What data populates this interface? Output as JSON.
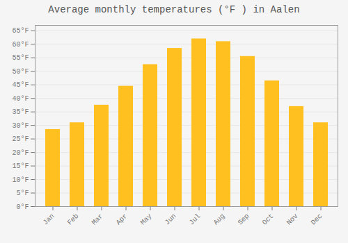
{
  "chart_data": {
    "type": "bar",
    "title": "Average monthly temperatures (°F ) in Aalen",
    "categories": [
      "Jan",
      "Feb",
      "Mar",
      "Apr",
      "May",
      "Jun",
      "Jul",
      "Aug",
      "Sep",
      "Oct",
      "Nov",
      "Dec"
    ],
    "values": [
      28.5,
      31.0,
      37.5,
      44.5,
      52.5,
      58.5,
      62.0,
      61.0,
      55.5,
      46.5,
      37.0,
      31.0
    ],
    "color": "#FFC020",
    "ylim": [
      0,
      67
    ],
    "yticks": [
      {
        "value": 0,
        "label": "0°F"
      },
      {
        "value": 5,
        "label": "5°F"
      },
      {
        "value": 10,
        "label": "10°F"
      },
      {
        "value": 15,
        "label": "15°F"
      },
      {
        "value": 20,
        "label": "20°F"
      },
      {
        "value": 25,
        "label": "25°F"
      },
      {
        "value": 30,
        "label": "30°F"
      },
      {
        "value": 35,
        "label": "35°F"
      },
      {
        "value": 40,
        "label": "40°F"
      },
      {
        "value": 45,
        "label": "45°F"
      },
      {
        "value": 50,
        "label": "50°F"
      },
      {
        "value": 55,
        "label": "55°F"
      },
      {
        "value": 60,
        "label": "60°F"
      },
      {
        "value": 65,
        "label": "65°F"
      }
    ],
    "grid": true
  }
}
